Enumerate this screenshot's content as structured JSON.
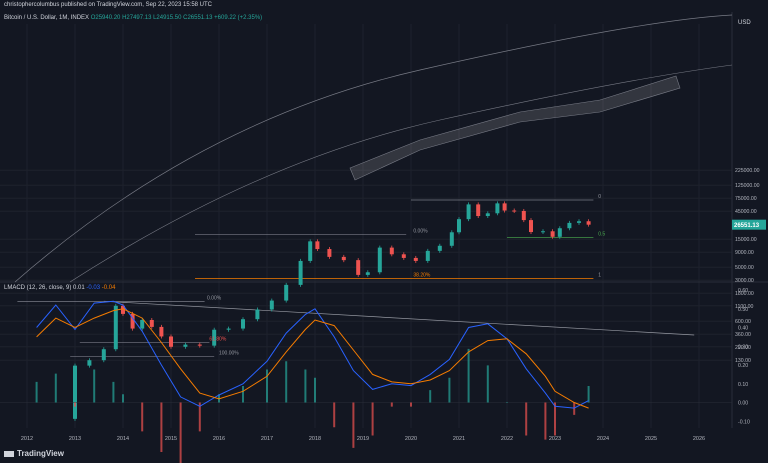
{
  "publisher": "christophercolumbus published on TradingView.com, Sep 22, 2023 15:58 UTC",
  "header": {
    "symbol": "Bitcoin / U.S. Dollar, 1M, INDEX",
    "ohlc": "O25940.20 H27497.13 L24915.50 C26551.13 +609.22 (+2.35%)"
  },
  "footer": {
    "brand": "TradingView"
  },
  "colors": {
    "background": "#131722",
    "up": "#26a69a",
    "down": "#ef5350",
    "macd": "#2962ff",
    "signal": "#f57c00"
  },
  "chart_data": [
    {
      "type": "candlestick",
      "title": "Bitcoin / U.S. Dollar, 1M, INDEX",
      "scale": "log",
      "currency": "USD",
      "last_price": "26551.13",
      "y_ticks": [
        "225000.00",
        "125000.00",
        "75000.00",
        "45000.00",
        "15000.00",
        "9000.00",
        "5000.00",
        "3000.00",
        "1800.00",
        "1100.00",
        "600.00",
        "360.00",
        "220.00",
        "130.00"
      ],
      "x_ticks": [
        "2012",
        "2013",
        "2014",
        "2015",
        "2016",
        "2017",
        "2018",
        "2019",
        "2020",
        "2021",
        "2022",
        "2023",
        "2024",
        "2025",
        "2026"
      ],
      "series": [
        {
          "x": 2013.0,
          "o": 13,
          "c": 105
        },
        {
          "x": 2013.3,
          "o": 105,
          "c": 130
        },
        {
          "x": 2013.6,
          "o": 130,
          "c": 200
        },
        {
          "x": 2013.85,
          "o": 200,
          "c": 1100
        },
        {
          "x": 2014.0,
          "o": 1100,
          "c": 800
        },
        {
          "x": 2014.2,
          "o": 800,
          "c": 450
        },
        {
          "x": 2014.4,
          "o": 450,
          "c": 630
        },
        {
          "x": 2014.6,
          "o": 630,
          "c": 480
        },
        {
          "x": 2014.8,
          "o": 480,
          "c": 330
        },
        {
          "x": 2015.0,
          "o": 330,
          "c": 220
        },
        {
          "x": 2015.3,
          "o": 220,
          "c": 240
        },
        {
          "x": 2015.6,
          "o": 240,
          "c": 230
        },
        {
          "x": 2015.9,
          "o": 230,
          "c": 430
        },
        {
          "x": 2016.2,
          "o": 430,
          "c": 450
        },
        {
          "x": 2016.5,
          "o": 450,
          "c": 650
        },
        {
          "x": 2016.8,
          "o": 650,
          "c": 950
        },
        {
          "x": 2017.1,
          "o": 950,
          "c": 1350
        },
        {
          "x": 2017.4,
          "o": 1350,
          "c": 2500
        },
        {
          "x": 2017.7,
          "o": 2500,
          "c": 6400
        },
        {
          "x": 2017.9,
          "o": 6400,
          "c": 13800
        },
        {
          "x": 2018.05,
          "o": 13800,
          "c": 10200
        },
        {
          "x": 2018.3,
          "o": 10200,
          "c": 7500
        },
        {
          "x": 2018.6,
          "o": 7500,
          "c": 6600
        },
        {
          "x": 2018.9,
          "o": 6600,
          "c": 3700
        },
        {
          "x": 2019.1,
          "o": 3700,
          "c": 4100
        },
        {
          "x": 2019.35,
          "o": 4100,
          "c": 10800
        },
        {
          "x": 2019.6,
          "o": 10800,
          "c": 8300
        },
        {
          "x": 2019.85,
          "o": 8300,
          "c": 7200
        },
        {
          "x": 2020.1,
          "o": 7200,
          "c": 6400
        },
        {
          "x": 2020.35,
          "o": 6400,
          "c": 9500
        },
        {
          "x": 2020.6,
          "o": 9500,
          "c": 11600
        },
        {
          "x": 2020.85,
          "o": 11600,
          "c": 19700
        },
        {
          "x": 2021.0,
          "o": 19700,
          "c": 33000
        },
        {
          "x": 2021.2,
          "o": 33000,
          "c": 58900
        },
        {
          "x": 2021.4,
          "o": 58900,
          "c": 37300
        },
        {
          "x": 2021.6,
          "o": 37300,
          "c": 41500
        },
        {
          "x": 2021.8,
          "o": 41500,
          "c": 61300
        },
        {
          "x": 2021.95,
          "o": 61300,
          "c": 46300
        },
        {
          "x": 2022.15,
          "o": 46300,
          "c": 45500
        },
        {
          "x": 2022.35,
          "o": 45500,
          "c": 31800
        },
        {
          "x": 2022.5,
          "o": 31800,
          "c": 19900
        },
        {
          "x": 2022.75,
          "o": 19900,
          "c": 20500
        },
        {
          "x": 2022.95,
          "o": 20500,
          "c": 16500
        },
        {
          "x": 2023.1,
          "o": 16500,
          "c": 23100
        },
        {
          "x": 2023.3,
          "o": 23100,
          "c": 28500
        },
        {
          "x": 2023.5,
          "o": 28500,
          "c": 30400
        },
        {
          "x": 2023.7,
          "o": 30400,
          "c": 26551
        }
      ],
      "annotations": [
        {
          "text": "0",
          "x": 2023.9,
          "y": 70000
        },
        {
          "text": "0.00%",
          "x": 2020.05,
          "y": 18000
        },
        {
          "text": "0.5",
          "x": 2023.9,
          "y": 16000
        },
        {
          "text": "38.20%",
          "x": 2020.05,
          "y": 3200
        },
        {
          "text": "1",
          "x": 2023.9,
          "y": 3200
        },
        {
          "text": "0.00%",
          "x": 2015.75,
          "y": 1300
        },
        {
          "text": "61.80%",
          "x": 2015.8,
          "y": 260
        },
        {
          "text": "100.00%",
          "x": 2016.0,
          "y": 150
        }
      ]
    },
    {
      "type": "line",
      "title": "LMACD (12, 26, close, 9)",
      "header_values": [
        "0.01",
        "-0.03",
        "-0.04"
      ],
      "y_ticks": [
        "0.60",
        "0.50",
        "0.40",
        "0.30",
        "0.20",
        "0.10",
        "0.00",
        "-0.10"
      ],
      "ylim": [
        -0.14,
        0.64
      ],
      "x": [
        2012.2,
        2012.6,
        2013.0,
        2013.4,
        2013.8,
        2014.0,
        2014.4,
        2014.8,
        2015.2,
        2015.6,
        2016.0,
        2016.5,
        2017.0,
        2017.4,
        2017.8,
        2018.0,
        2018.4,
        2018.8,
        2019.2,
        2019.6,
        2020.0,
        2020.4,
        2020.8,
        2021.2,
        2021.6,
        2022.0,
        2022.4,
        2022.8,
        2023.0,
        2023.4,
        2023.7
      ],
      "series": [
        {
          "name": "MACD",
          "values": [
            0.4,
            0.52,
            0.39,
            0.53,
            0.54,
            0.52,
            0.38,
            0.2,
            0.03,
            -0.02,
            0.04,
            0.1,
            0.22,
            0.37,
            0.47,
            0.5,
            0.35,
            0.17,
            0.07,
            0.1,
            0.09,
            0.15,
            0.23,
            0.4,
            0.42,
            0.34,
            0.18,
            0.05,
            -0.02,
            -0.03,
            0.01
          ]
        },
        {
          "name": "Signal",
          "values": [
            0.35,
            0.45,
            0.4,
            0.45,
            0.49,
            0.5,
            0.45,
            0.32,
            0.18,
            0.05,
            0.02,
            0.06,
            0.14,
            0.27,
            0.39,
            0.44,
            0.41,
            0.28,
            0.15,
            0.11,
            0.1,
            0.12,
            0.17,
            0.27,
            0.33,
            0.34,
            0.26,
            0.14,
            0.06,
            0.0,
            -0.03
          ]
        }
      ]
    }
  ]
}
